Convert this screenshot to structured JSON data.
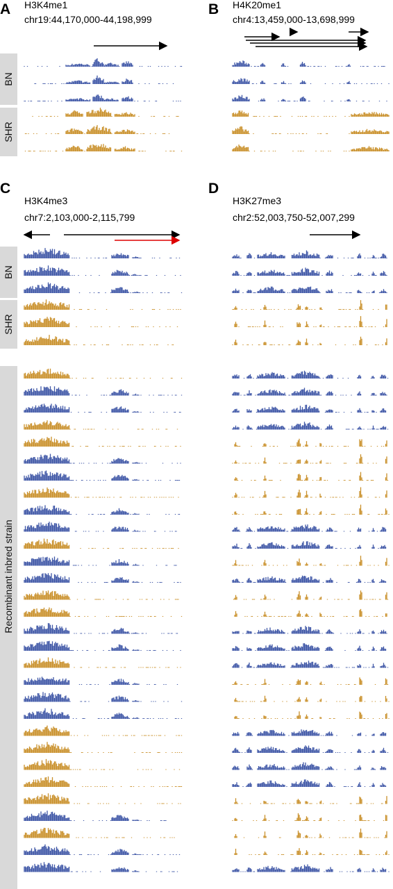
{
  "panels": [
    {
      "letter": "A",
      "mark": "H3K4me1",
      "region": "chr19:44,170,000-44,198,999",
      "groups": [
        "BN",
        "SHR"
      ]
    },
    {
      "letter": "B",
      "mark": "H4K20me1",
      "region": "chr4:13,459,000-13,698,999"
    },
    {
      "letter": "C",
      "mark": "H3K4me3",
      "region": "chr7:2,103,000-2,115,799",
      "groups": [
        "BN",
        "SHR",
        "Recombinant inbred strain"
      ]
    },
    {
      "letter": "D",
      "mark": "H3K27me3",
      "region": "chr2:52,003,750-52,007,299"
    }
  ]
}
